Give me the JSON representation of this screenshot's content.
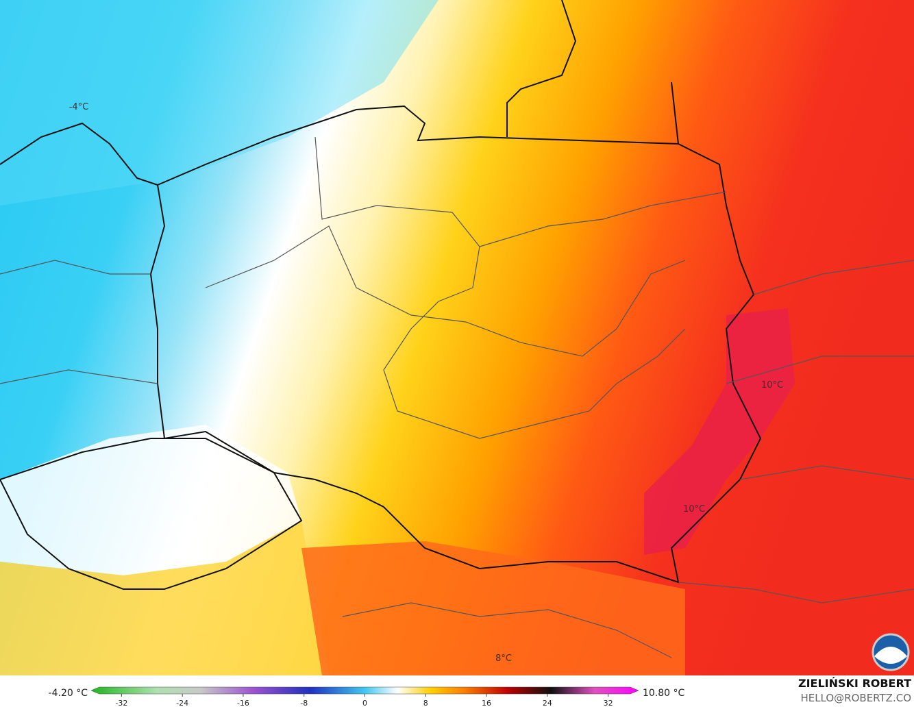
{
  "map": {
    "temperature_labels": [
      "-4°C",
      "10°C",
      "10°C",
      "8°C"
    ]
  },
  "colorbar": {
    "min_label": "-4.20 °C",
    "max_label": "10.80 °C",
    "range": [
      -36,
      36
    ],
    "ticks": [
      -32,
      -24,
      -16,
      -8,
      0,
      8,
      16,
      24,
      32
    ]
  },
  "credits": {
    "author": "ZIELIŃSKI ROBERT",
    "contact": "HELLO@ROBERTZ.CO"
  }
}
